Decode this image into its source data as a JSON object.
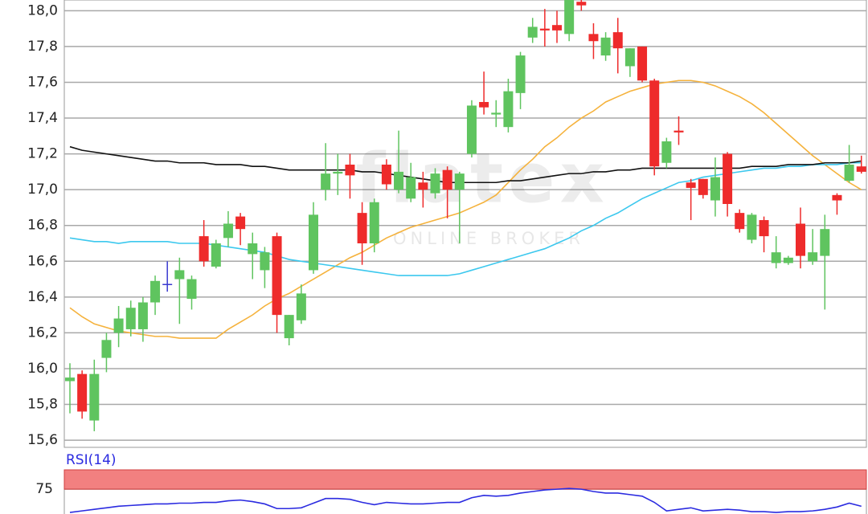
{
  "chart_data": [
    {
      "type": "candlestick",
      "watermark": [
        "flatex",
        "ONLINE BROKER"
      ],
      "ylim": [
        15.56,
        18.06
      ],
      "yticks": [
        {
          "value": 15.6,
          "label": "15,6"
        },
        {
          "value": 15.8,
          "label": "15,8"
        },
        {
          "value": 16.0,
          "label": "16,0"
        },
        {
          "value": 16.2,
          "label": "16,2"
        },
        {
          "value": 16.4,
          "label": "16,4"
        },
        {
          "value": 16.6,
          "label": "16,6"
        },
        {
          "value": 16.8,
          "label": "16,8"
        },
        {
          "value": 17.0,
          "label": "17,0"
        },
        {
          "value": 17.2,
          "label": "17,2"
        },
        {
          "value": 17.4,
          "label": "17,4"
        },
        {
          "value": 17.6,
          "label": "17,6"
        },
        {
          "value": 17.8,
          "label": "17,8"
        },
        {
          "value": 18.0,
          "label": "18,0"
        }
      ],
      "grid": true,
      "colors": {
        "up": "#5fc45f",
        "down": "#ee2b2b",
        "flat": "#3a3ad0"
      },
      "open": [
        15.93,
        15.97,
        15.71,
        16.06,
        16.2,
        16.22,
        16.22,
        16.37,
        16.47,
        16.5,
        16.39,
        16.74,
        16.57,
        16.73,
        16.85,
        16.64,
        16.55,
        16.74,
        16.17,
        16.27,
        16.55,
        17.0,
        17.09,
        17.14,
        16.87,
        16.7,
        17.14,
        17.0,
        16.95,
        17.04,
        16.98,
        17.11,
        17.0,
        17.2,
        17.49,
        17.42,
        17.35,
        17.54,
        17.85,
        17.9,
        17.92,
        17.87,
        18.05,
        17.87,
        17.75,
        17.88,
        17.69,
        17.8,
        17.61,
        17.15,
        17.33,
        17.04,
        17.06,
        16.94,
        17.2,
        16.87,
        16.72,
        16.83,
        16.59,
        16.59,
        16.81,
        16.6,
        16.63,
        16.97,
        17.05,
        17.13
      ],
      "high": [
        16.03,
        15.99,
        16.05,
        16.2,
        16.35,
        16.38,
        16.4,
        16.52,
        16.6,
        16.62,
        16.52,
        16.83,
        16.72,
        16.88,
        16.87,
        16.76,
        16.68,
        16.76,
        16.3,
        16.47,
        16.93,
        17.26,
        17.2,
        17.2,
        16.93,
        16.95,
        17.17,
        17.33,
        17.15,
        17.1,
        17.12,
        17.13,
        17.1,
        17.5,
        17.66,
        17.5,
        17.62,
        17.77,
        17.96,
        18.01,
        18.0,
        18.06,
        18.06,
        17.93,
        17.88,
        17.96,
        17.79,
        17.8,
        17.62,
        17.29,
        17.41,
        17.06,
        17.06,
        17.18,
        17.21,
        16.89,
        16.87,
        16.85,
        16.74,
        16.63,
        16.9,
        16.78,
        16.86,
        16.98,
        17.25,
        17.19
      ],
      "low": [
        15.75,
        15.72,
        15.65,
        15.98,
        16.12,
        16.18,
        16.15,
        16.3,
        16.43,
        16.25,
        16.33,
        16.57,
        16.56,
        16.68,
        16.69,
        16.5,
        16.45,
        16.2,
        16.13,
        16.25,
        16.53,
        16.94,
        16.97,
        16.95,
        16.58,
        16.65,
        17.0,
        16.98,
        16.93,
        16.9,
        16.95,
        16.84,
        16.7,
        17.18,
        17.42,
        17.35,
        17.32,
        17.45,
        17.82,
        17.8,
        17.82,
        17.83,
        18.0,
        17.73,
        17.72,
        17.65,
        17.63,
        17.6,
        17.08,
        17.12,
        17.25,
        16.83,
        16.95,
        16.85,
        16.85,
        16.76,
        16.7,
        16.65,
        16.56,
        16.58,
        16.56,
        16.58,
        16.33,
        16.86,
        17.04,
        17.09
      ],
      "close": [
        15.95,
        15.76,
        15.97,
        16.16,
        16.28,
        16.34,
        16.37,
        16.49,
        16.47,
        16.55,
        16.5,
        16.6,
        16.7,
        16.81,
        16.78,
        16.7,
        16.65,
        16.3,
        16.3,
        16.42,
        16.86,
        17.09,
        17.1,
        17.08,
        16.7,
        16.93,
        17.03,
        17.1,
        17.07,
        17.0,
        17.09,
        17.0,
        17.09,
        17.47,
        17.46,
        17.43,
        17.55,
        17.75,
        17.91,
        17.89,
        17.89,
        18.06,
        18.03,
        17.83,
        17.85,
        17.79,
        17.79,
        17.61,
        17.13,
        17.27,
        17.32,
        17.01,
        16.97,
        17.07,
        16.92,
        16.78,
        16.86,
        16.74,
        16.65,
        16.62,
        16.63,
        16.65,
        16.78,
        16.94,
        17.14,
        17.1
      ],
      "lines": [
        {
          "color": "#f5b23c",
          "values": [
            16.34,
            16.29,
            16.25,
            16.23,
            16.21,
            16.2,
            16.19,
            16.18,
            16.18,
            16.17,
            16.17,
            16.17,
            16.17,
            16.22,
            16.26,
            16.3,
            16.35,
            16.39,
            16.42,
            16.46,
            16.5,
            16.54,
            16.58,
            16.62,
            16.65,
            16.69,
            16.73,
            16.76,
            16.79,
            16.81,
            16.83,
            16.85,
            16.87,
            16.9,
            16.93,
            16.97,
            17.04,
            17.11,
            17.17,
            17.24,
            17.29,
            17.35,
            17.4,
            17.44,
            17.49,
            17.52,
            17.55,
            17.57,
            17.59,
            17.6,
            17.61,
            17.61,
            17.6,
            17.58,
            17.55,
            17.52,
            17.48,
            17.43,
            17.37,
            17.31,
            17.25,
            17.19,
            17.14,
            17.09,
            17.04,
            17.0
          ]
        },
        {
          "color": "#3cc8ee",
          "values": [
            16.73,
            16.72,
            16.71,
            16.71,
            16.7,
            16.71,
            16.71,
            16.71,
            16.71,
            16.7,
            16.7,
            16.7,
            16.69,
            16.68,
            16.67,
            16.66,
            16.65,
            16.63,
            16.61,
            16.6,
            16.59,
            16.58,
            16.57,
            16.56,
            16.55,
            16.54,
            16.53,
            16.52,
            16.52,
            16.52,
            16.52,
            16.52,
            16.53,
            16.55,
            16.57,
            16.59,
            16.61,
            16.63,
            16.65,
            16.67,
            16.7,
            16.73,
            16.77,
            16.8,
            16.84,
            16.87,
            16.91,
            16.95,
            16.98,
            17.01,
            17.04,
            17.05,
            17.07,
            17.08,
            17.09,
            17.1,
            17.11,
            17.12,
            17.12,
            17.13,
            17.13,
            17.14,
            17.14,
            17.14,
            17.15,
            17.15
          ]
        },
        {
          "color": "#111111",
          "values": [
            17.24,
            17.22,
            17.21,
            17.2,
            17.19,
            17.18,
            17.17,
            17.16,
            17.16,
            17.15,
            17.15,
            17.15,
            17.14,
            17.14,
            17.14,
            17.13,
            17.13,
            17.12,
            17.11,
            17.11,
            17.11,
            17.11,
            17.11,
            17.11,
            17.1,
            17.1,
            17.09,
            17.08,
            17.07,
            17.06,
            17.05,
            17.04,
            17.04,
            17.04,
            17.04,
            17.04,
            17.05,
            17.05,
            17.06,
            17.07,
            17.08,
            17.09,
            17.09,
            17.1,
            17.1,
            17.11,
            17.11,
            17.12,
            17.12,
            17.12,
            17.12,
            17.12,
            17.12,
            17.12,
            17.12,
            17.12,
            17.13,
            17.13,
            17.13,
            17.14,
            17.14,
            17.14,
            17.15,
            17.15,
            17.15,
            17.16
          ]
        }
      ]
    },
    {
      "type": "line",
      "title": "RSI(14)",
      "ylim": [
        43,
        100
      ],
      "yticks": [
        75
      ],
      "band": [
        75,
        100
      ],
      "band_color": "#f28080",
      "color": "#2b2be0",
      "values": [
        45,
        47,
        49,
        51,
        53,
        54,
        55,
        56,
        56,
        57,
        57,
        58,
        58,
        60,
        61,
        59,
        56,
        50,
        50,
        51,
        57,
        63,
        63,
        62,
        58,
        55,
        58,
        57,
        56,
        56,
        57,
        58,
        58,
        64,
        67,
        66,
        67,
        70,
        72,
        74,
        75,
        76,
        75,
        72,
        70,
        70,
        68,
        66,
        58,
        47,
        49,
        51,
        47,
        48,
        49,
        48,
        46,
        46,
        45,
        46,
        46,
        47,
        49,
        52,
        57,
        53
      ]
    }
  ]
}
